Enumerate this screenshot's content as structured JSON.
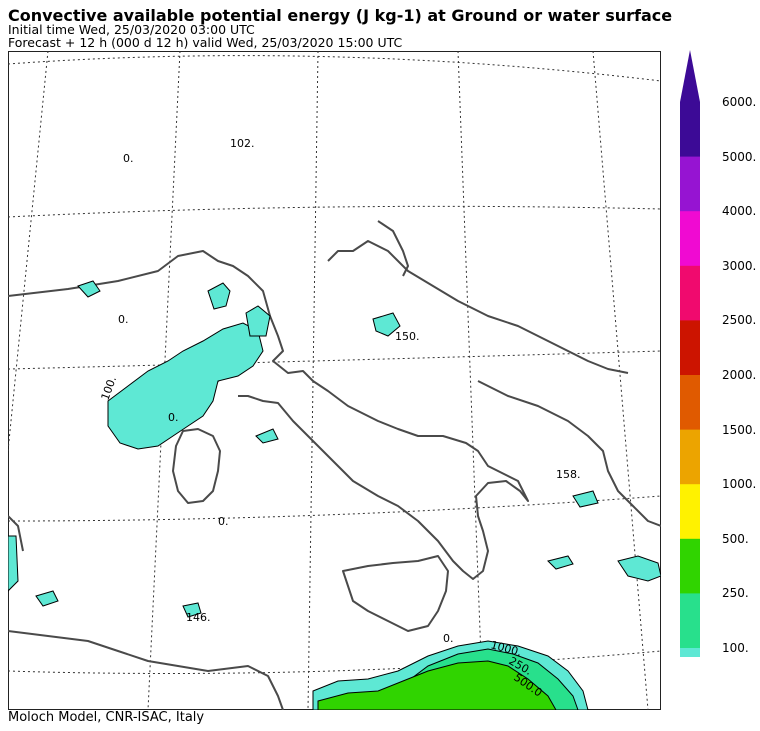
{
  "header": {
    "title": "Convective available potential energy (J kg-1) at Ground or water surface",
    "initial_time": "Initial time  Wed, 25/03/2020  03:00 UTC",
    "forecast": "Forecast  +  12 h  (000 d 12 h)  valid Wed, 25/03/2020 15:00 UTC"
  },
  "footer": {
    "credit": "Moloch Model, CNR-ISAC, Italy"
  },
  "legend": {
    "levels": [
      {
        "label": "100.",
        "color": "#5ee8d4"
      },
      {
        "label": "250.",
        "color": "#28e08c"
      },
      {
        "label": "500.",
        "color": "#30d400"
      },
      {
        "label": "1000.",
        "color": "#fff200"
      },
      {
        "label": "1500.",
        "color": "#eca400"
      },
      {
        "label": "2000.",
        "color": "#e05a00"
      },
      {
        "label": "2500.",
        "color": "#cc1400"
      },
      {
        "label": "3000.",
        "color": "#f00a6e"
      },
      {
        "label": "4000.",
        "color": "#f00ad2"
      },
      {
        "label": "5000.",
        "color": "#9614d2"
      },
      {
        "label": "6000.",
        "color": "#3c0a96"
      }
    ]
  },
  "map": {
    "contour_labels": [
      "0.",
      "102.",
      "0.",
      "150.",
      "100.",
      "0.",
      "0.",
      "158.",
      "146.",
      "0.",
      "1000.",
      "250.",
      "500.0"
    ]
  }
}
